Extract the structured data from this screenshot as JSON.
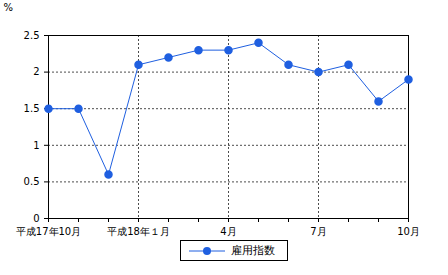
{
  "chart_data": {
    "type": "line",
    "y_label": "%",
    "categories": [
      "平成17年10月",
      null,
      null,
      "平成18年１月",
      null,
      null,
      "4月",
      null,
      null,
      "7月",
      null,
      null,
      "10月"
    ],
    "series": [
      {
        "name": "雇用指数",
        "color": "#1f5fe0",
        "marker": "circle",
        "values": [
          1.5,
          1.5,
          0.6,
          2.1,
          2.2,
          2.3,
          2.3,
          2.4,
          2.1,
          2.0,
          2.1,
          1.6,
          1.9
        ]
      }
    ],
    "ylim": [
      0,
      2.5
    ],
    "yticks": [
      0,
      0.5,
      1,
      1.5,
      2,
      2.5
    ],
    "grid": true,
    "legend": "bottom"
  }
}
